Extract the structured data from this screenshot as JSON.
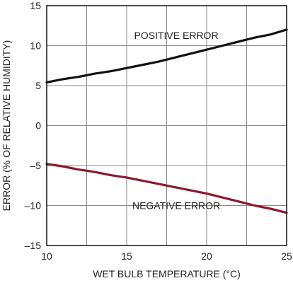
{
  "chart_data": {
    "type": "line",
    "title": "",
    "xlabel": "WET BULB TEMPERATURE (°C)",
    "ylabel": "ERROR (% OF RELATIVE HUMIDITY)",
    "xlim": [
      10,
      25
    ],
    "ylim": [
      -15,
      15
    ],
    "x_ticks": [
      10,
      15,
      20,
      25
    ],
    "x_tick_labels": [
      "10",
      "15",
      "20",
      "25"
    ],
    "y_ticks": [
      15,
      10,
      5,
      0,
      -5,
      -10,
      -15
    ],
    "y_tick_labels": [
      "15",
      "10",
      "5",
      "0",
      "–5",
      "–10",
      "–15"
    ],
    "x_grid_step": 2.5,
    "y_grid_step": 5,
    "grid": true,
    "series": [
      {
        "x": [
          10,
          11,
          12,
          13,
          14,
          15,
          16,
          17,
          18,
          19,
          20,
          21,
          22,
          23,
          24,
          25
        ],
        "values": [
          5.4,
          5.8,
          6.1,
          6.5,
          6.8,
          7.2,
          7.6,
          8.0,
          8.5,
          9.0,
          9.5,
          10.0,
          10.5,
          11.0,
          11.4,
          12.0
        ],
        "color": "#111111"
      },
      {
        "x": [
          10,
          11,
          12,
          13,
          14,
          15,
          16,
          17,
          18,
          19,
          20,
          21,
          22,
          23,
          24,
          25
        ],
        "values": [
          -4.8,
          -5.1,
          -5.5,
          -5.8,
          -6.2,
          -6.5,
          -6.9,
          -7.3,
          -7.7,
          -8.1,
          -8.5,
          -9.0,
          -9.5,
          -10.0,
          -10.4,
          -10.9
        ],
        "color": "#8b1a2b"
      }
    ],
    "annotations": [
      {
        "text": "POSITIVE ERROR",
        "x": 18.1,
        "y": 11.3
      },
      {
        "text": "NEGATIVE ERROR",
        "x": 18.1,
        "y": -10.0
      }
    ]
  },
  "colors": {
    "grid": "#8a8a8a",
    "frame": "#111111",
    "positive_series": "#111111",
    "negative_series": "#8b1a2b"
  }
}
